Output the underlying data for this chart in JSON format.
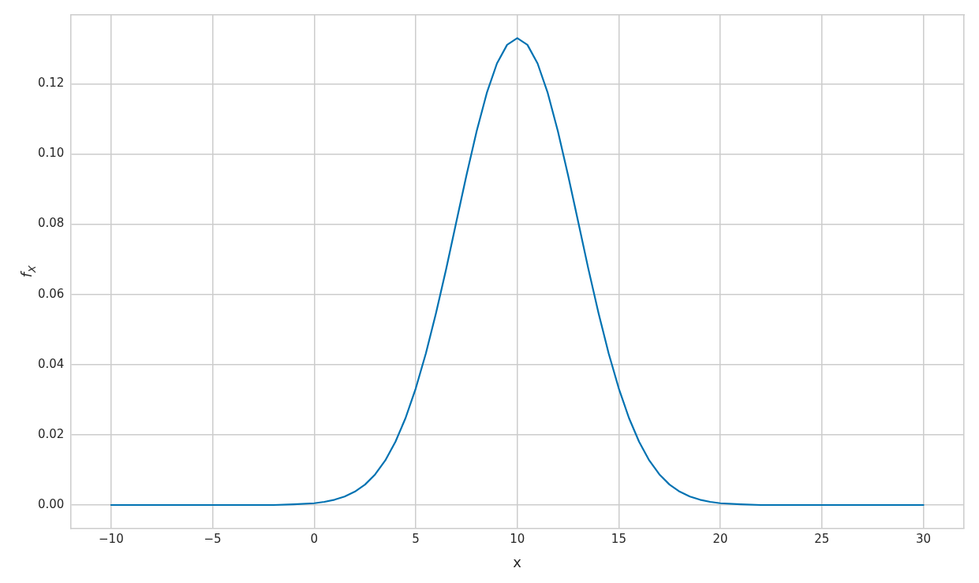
{
  "chart_data": {
    "type": "line",
    "xlabel": "x",
    "ylabel": "f$_{X}$",
    "x": [
      -10,
      -5,
      -2,
      -1,
      0,
      0.5,
      1,
      1.5,
      2,
      2.5,
      3,
      3.5,
      4,
      4.5,
      5,
      5.5,
      6,
      6.5,
      7,
      7.5,
      8,
      8.5,
      9,
      9.5,
      10,
      10.5,
      11,
      11.5,
      12,
      12.5,
      13,
      13.5,
      14,
      14.5,
      15,
      15.5,
      16,
      16.5,
      17,
      17.5,
      18,
      18.5,
      19,
      19.5,
      20,
      21,
      22,
      25,
      30
    ],
    "series": [
      {
        "color": "#0072b2",
        "values": [
          0,
          0,
          0,
          0.0002,
          0.0005,
          0.0009,
          0.0015,
          0.0024,
          0.0038,
          0.0058,
          0.0087,
          0.0127,
          0.018,
          0.0248,
          0.0332,
          0.0432,
          0.0547,
          0.0673,
          0.0807,
          0.094,
          0.1065,
          0.1174,
          0.1258,
          0.1311,
          0.133,
          0.1311,
          0.1258,
          0.1174,
          0.1065,
          0.094,
          0.0807,
          0.0673,
          0.0547,
          0.0432,
          0.0332,
          0.0248,
          0.018,
          0.0127,
          0.0087,
          0.0058,
          0.0038,
          0.0024,
          0.0015,
          0.0009,
          0.0005,
          0.0002,
          0,
          0,
          0
        ]
      }
    ],
    "xlim": [
      -12,
      32
    ],
    "ylim": [
      -0.0066,
      0.1396
    ],
    "xticks": [
      {
        "value": -10,
        "label": "−10"
      },
      {
        "value": -5,
        "label": "−5"
      },
      0,
      5,
      10,
      15,
      20,
      25,
      30
    ],
    "yticks": [
      {
        "value": 0,
        "label": "0.00"
      },
      {
        "value": 0.02,
        "label": "0.02"
      },
      {
        "value": 0.04,
        "label": "0.04"
      },
      {
        "value": 0.06,
        "label": "0.06"
      },
      {
        "value": 0.08,
        "label": "0.08"
      },
      {
        "value": 0.1,
        "label": "0.10"
      },
      {
        "value": 0.12,
        "label": "0.12"
      }
    ],
    "grid": true,
    "legend": false,
    "marker": "none",
    "line_style": "solid"
  }
}
